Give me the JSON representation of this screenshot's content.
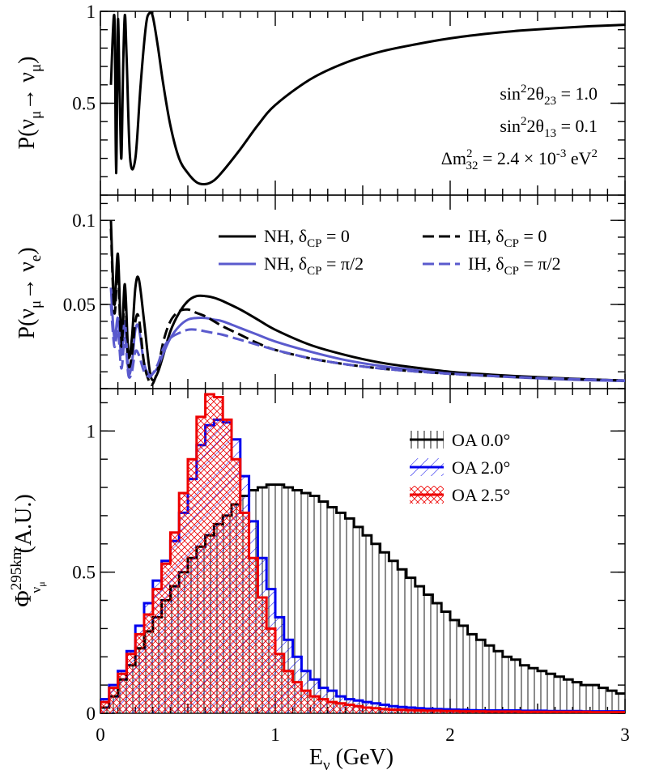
{
  "chart_data": [
    {
      "type": "line",
      "panel": "top",
      "title": "",
      "xlabel": "",
      "ylabel": "P(ν_μ → ν_μ)",
      "xlim": [
        0,
        3
      ],
      "ylim": [
        0.0,
        1.0
      ],
      "ytick_labels": [
        "0.5",
        "1"
      ],
      "yticks": [
        0.5,
        1.0
      ],
      "series": [
        {
          "name": "P(νμ→νμ)",
          "color": "#000000",
          "style": "solid",
          "x": [
            0.06,
            0.08,
            0.09,
            0.1,
            0.11,
            0.12,
            0.13,
            0.14,
            0.15,
            0.17,
            0.2,
            0.23,
            0.26,
            0.28,
            0.3,
            0.33,
            0.36,
            0.4,
            0.45,
            0.5,
            0.55,
            0.6,
            0.65,
            0.7,
            0.8,
            0.9,
            1.0,
            1.2,
            1.4,
            1.6,
            1.8,
            2.0,
            2.2,
            2.4,
            2.6,
            2.8,
            3.0
          ],
          "y": [
            0.6,
            0.97,
            0.12,
            0.95,
            0.55,
            0.2,
            0.7,
            0.98,
            0.75,
            0.2,
            0.2,
            0.6,
            0.92,
            0.99,
            0.97,
            0.8,
            0.6,
            0.38,
            0.2,
            0.12,
            0.07,
            0.06,
            0.08,
            0.13,
            0.25,
            0.38,
            0.49,
            0.63,
            0.72,
            0.78,
            0.82,
            0.853,
            0.877,
            0.895,
            0.908,
            0.919,
            0.927
          ]
        }
      ],
      "annotations": {
        "line1_main": "sin",
        "line1_sup": "2",
        "line1_rest": "2θ",
        "line1_sub": "23",
        "line1_val": " = 1.0",
        "line2_main": "sin",
        "line2_sup": "2",
        "line2_rest": "2θ",
        "line2_sub": "13",
        "line2_val": " = 0.1",
        "line3_main": "Δm",
        "line3_sup": "2",
        "line3_sub": "32",
        "line3_val": " = 2.4 × 10",
        "line3_exp": "-3",
        "line3_unit": " eV",
        "line3_unit_sup": "2"
      }
    },
    {
      "type": "line",
      "panel": "middle",
      "title": "",
      "xlabel": "",
      "ylabel": "P(ν_μ → ν_e)",
      "xlim": [
        0,
        3
      ],
      "ylim": [
        0.0,
        0.115
      ],
      "ytick_labels": [
        "0.05",
        "0.1"
      ],
      "yticks": [
        0.05,
        0.1
      ],
      "legend_position": "top-right",
      "series": [
        {
          "name": "NH, δ_CP = 0",
          "legend_main": "NH, δ",
          "legend_sub": "CP",
          "legend_val": " = 0",
          "color": "#000000",
          "style": "solid",
          "x": [
            0.06,
            0.08,
            0.1,
            0.12,
            0.14,
            0.16,
            0.18,
            0.2,
            0.22,
            0.25,
            0.28,
            0.3,
            0.33,
            0.36,
            0.4,
            0.45,
            0.5,
            0.55,
            0.6,
            0.65,
            0.7,
            0.8,
            0.9,
            1.0,
            1.2,
            1.4,
            1.6,
            1.8,
            2.0,
            2.2,
            2.4,
            2.6,
            2.8,
            3.0
          ],
          "y": [
            0.1,
            0.05,
            0.08,
            0.03,
            0.062,
            0.02,
            0.03,
            0.06,
            0.065,
            0.04,
            0.012,
            0.005,
            0.01,
            0.02,
            0.034,
            0.045,
            0.052,
            0.055,
            0.055,
            0.054,
            0.052,
            0.047,
            0.041,
            0.035,
            0.026,
            0.02,
            0.0155,
            0.0125,
            0.01,
            0.0085,
            0.0073,
            0.0063,
            0.0055,
            0.0048
          ]
        },
        {
          "name": "NH, δ_CP = π/2",
          "legend_main": "NH, δ",
          "legend_sub": "CP",
          "legend_val": " = π/2",
          "color": "#5a5acd",
          "style": "solid",
          "x": [
            0.06,
            0.08,
            0.1,
            0.12,
            0.14,
            0.16,
            0.18,
            0.2,
            0.22,
            0.25,
            0.28,
            0.3,
            0.33,
            0.36,
            0.4,
            0.45,
            0.5,
            0.55,
            0.6,
            0.65,
            0.7,
            0.8,
            0.9,
            1.0,
            1.2,
            1.4,
            1.6,
            1.8,
            2.0,
            2.2,
            2.4,
            2.6,
            2.8,
            3.0
          ],
          "y": [
            0.06,
            0.03,
            0.042,
            0.02,
            0.04,
            0.01,
            0.015,
            0.035,
            0.036,
            0.015,
            0.008,
            0.009,
            0.013,
            0.021,
            0.03,
            0.037,
            0.041,
            0.042,
            0.042,
            0.041,
            0.04,
            0.036,
            0.032,
            0.028,
            0.022,
            0.017,
            0.0135,
            0.011,
            0.009,
            0.0077,
            0.0066,
            0.0057,
            0.005,
            0.0045
          ]
        },
        {
          "name": "IH, δ_CP = 0",
          "legend_main": "IH, δ",
          "legend_sub": "CP",
          "legend_val": " = 0",
          "color": "#000000",
          "style": "dashed",
          "x": [
            0.06,
            0.08,
            0.1,
            0.12,
            0.14,
            0.16,
            0.18,
            0.2,
            0.22,
            0.25,
            0.28,
            0.3,
            0.33,
            0.36,
            0.4,
            0.45,
            0.5,
            0.55,
            0.6,
            0.65,
            0.7,
            0.8,
            0.9,
            1.0,
            1.2,
            1.4,
            1.6,
            1.8,
            2.0,
            2.2,
            2.4,
            2.6,
            2.8,
            3.0
          ],
          "y": [
            0.095,
            0.045,
            0.07,
            0.025,
            0.055,
            0.015,
            0.02,
            0.04,
            0.042,
            0.015,
            0.004,
            0.003,
            0.012,
            0.028,
            0.04,
            0.046,
            0.047,
            0.045,
            0.043,
            0.04,
            0.037,
            0.032,
            0.027,
            0.023,
            0.018,
            0.0145,
            0.012,
            0.0102,
            0.0088,
            0.0077,
            0.0068,
            0.006,
            0.0054,
            0.0048
          ]
        },
        {
          "name": "IH, δ_CP = π/2",
          "legend_main": "IH, δ",
          "legend_sub": "CP",
          "legend_val": " = π/2",
          "color": "#5a5acd",
          "style": "dashed",
          "x": [
            0.06,
            0.08,
            0.1,
            0.12,
            0.14,
            0.16,
            0.18,
            0.2,
            0.22,
            0.25,
            0.28,
            0.3,
            0.33,
            0.36,
            0.4,
            0.45,
            0.5,
            0.55,
            0.6,
            0.65,
            0.7,
            0.8,
            0.9,
            1.0,
            1.2,
            1.4,
            1.6,
            1.8,
            2.0,
            2.2,
            2.4,
            2.6,
            2.8,
            3.0
          ],
          "y": [
            0.05,
            0.025,
            0.035,
            0.012,
            0.03,
            0.008,
            0.01,
            0.022,
            0.02,
            0.01,
            0.007,
            0.009,
            0.015,
            0.024,
            0.03,
            0.033,
            0.035,
            0.035,
            0.034,
            0.033,
            0.032,
            0.029,
            0.026,
            0.023,
            0.018,
            0.0145,
            0.012,
            0.0102,
            0.0088,
            0.0077,
            0.0068,
            0.006,
            0.0054,
            0.0048
          ]
        }
      ]
    },
    {
      "type": "histogram",
      "panel": "bottom",
      "title": "",
      "xlabel": "E_ν (GeV)",
      "ylabel": "Φ^{295km}_{ν_μ} (A.U.)",
      "xlim": [
        0,
        3
      ],
      "ylim": [
        0,
        1.15
      ],
      "xtick_labels": [
        "0",
        "1",
        "2",
        "3"
      ],
      "xticks": [
        0,
        1,
        2,
        3
      ],
      "ytick_labels": [
        "0",
        "0.5",
        "1"
      ],
      "yticks": [
        0,
        0.5,
        1
      ],
      "legend_position": "top-right",
      "bin_width": 0.05,
      "series": [
        {
          "name": "OA 0.0°",
          "legend_label": "OA 0.0°",
          "color": "#000000",
          "hatch": "vertical",
          "values": [
            0.02,
            0.06,
            0.12,
            0.17,
            0.23,
            0.29,
            0.34,
            0.4,
            0.45,
            0.5,
            0.55,
            0.59,
            0.63,
            0.67,
            0.7,
            0.74,
            0.77,
            0.79,
            0.8,
            0.81,
            0.81,
            0.8,
            0.79,
            0.78,
            0.77,
            0.75,
            0.73,
            0.71,
            0.69,
            0.66,
            0.63,
            0.6,
            0.57,
            0.54,
            0.51,
            0.48,
            0.45,
            0.42,
            0.39,
            0.36,
            0.33,
            0.31,
            0.28,
            0.26,
            0.24,
            0.22,
            0.2,
            0.19,
            0.17,
            0.16,
            0.15,
            0.14,
            0.13,
            0.12,
            0.11,
            0.1,
            0.1,
            0.09,
            0.08,
            0.07
          ]
        },
        {
          "name": "OA 2.0°",
          "legend_label": "OA 2.0°",
          "color": "#0000ee",
          "hatch": "diagonal",
          "values": [
            0.05,
            0.1,
            0.15,
            0.22,
            0.31,
            0.39,
            0.47,
            0.54,
            0.61,
            0.71,
            0.83,
            0.95,
            1.02,
            1.04,
            1.03,
            0.97,
            0.84,
            0.68,
            0.55,
            0.44,
            0.34,
            0.26,
            0.2,
            0.15,
            0.12,
            0.09,
            0.08,
            0.06,
            0.05,
            0.045,
            0.04,
            0.035,
            0.03,
            0.025,
            0.022,
            0.02,
            0.018,
            0.016,
            0.015,
            0.014,
            0.013,
            0.012,
            0.011,
            0.01,
            0.01,
            0.01,
            0.01,
            0.01,
            0.009,
            0.009,
            0.009,
            0.008,
            0.008,
            0.008,
            0.008,
            0.007,
            0.007,
            0.007,
            0.007,
            0.007
          ]
        },
        {
          "name": "OA 2.5°",
          "legend_label": "OA 2.5°",
          "color": "#ee0000",
          "hatch": "crossed",
          "values": [
            0.04,
            0.09,
            0.14,
            0.21,
            0.28,
            0.35,
            0.44,
            0.53,
            0.64,
            0.78,
            0.9,
            1.05,
            1.13,
            1.12,
            1.04,
            0.9,
            0.71,
            0.55,
            0.41,
            0.3,
            0.21,
            0.15,
            0.11,
            0.08,
            0.06,
            0.05,
            0.04,
            0.035,
            0.03,
            0.025,
            0.02,
            0.018,
            0.015,
            0.013,
            0.012,
            0.011,
            0.01,
            0.009,
            0.009,
            0.008,
            0.008,
            0.007,
            0.007,
            0.007,
            0.006,
            0.006,
            0.006,
            0.006,
            0.005,
            0.005,
            0.005,
            0.005,
            0.005,
            0.005,
            0.005,
            0.005,
            0.004,
            0.004,
            0.004,
            0.004
          ]
        }
      ]
    }
  ]
}
